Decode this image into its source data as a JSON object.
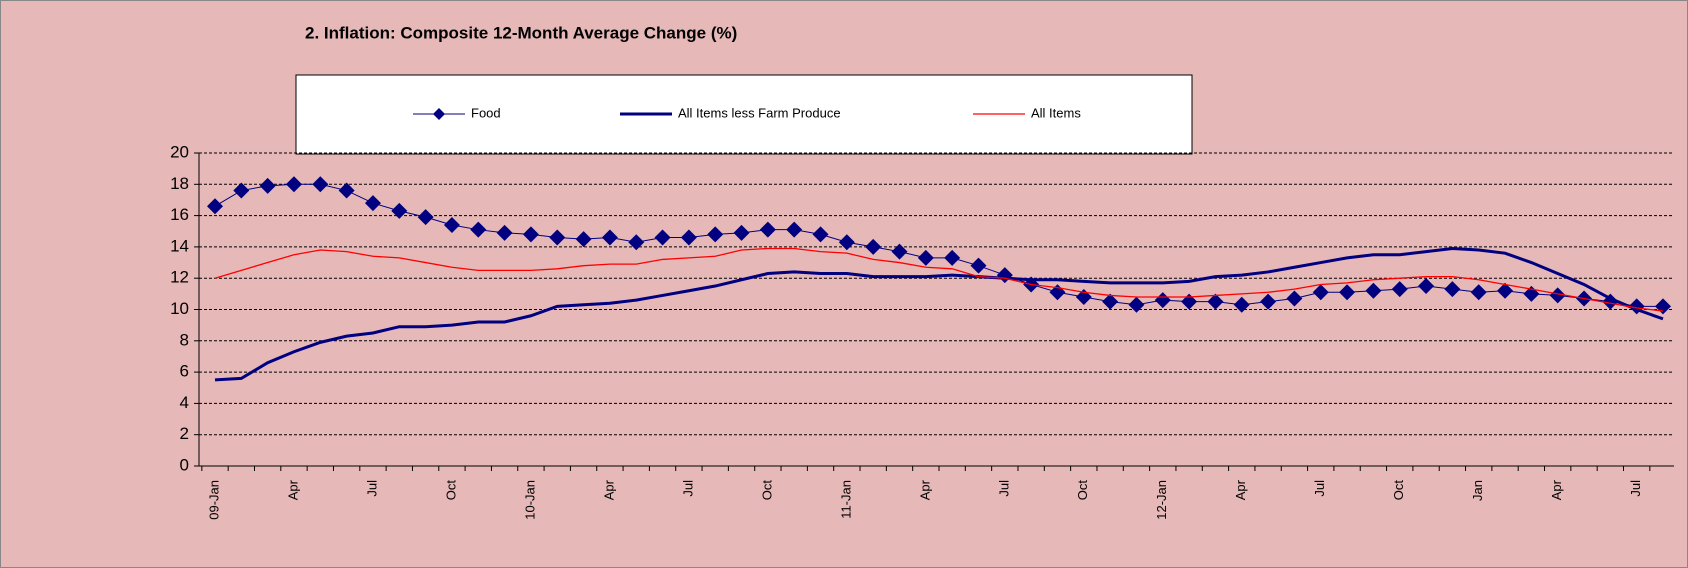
{
  "chart_data": {
    "type": "line",
    "title": "2. Inflation: Composite 12-Month Average Change (%)",
    "categories": [
      "09-Jan",
      null,
      null,
      "Apr",
      null,
      null,
      "Jul",
      null,
      null,
      "Oct",
      null,
      null,
      "10-Jan",
      null,
      null,
      "Apr",
      null,
      null,
      "Jul",
      null,
      null,
      "Oct",
      null,
      null,
      "11-Jan",
      null,
      null,
      "Apr",
      null,
      null,
      "Jul",
      null,
      null,
      "Oct",
      null,
      null,
      "12-Jan",
      null,
      null,
      "Apr",
      null,
      null,
      "Jul",
      null,
      null,
      "Oct",
      null,
      null,
      "Jan",
      null,
      null,
      "Apr",
      null,
      null,
      "Jul",
      null
    ],
    "series": [
      {
        "name": "Food",
        "color": "#000080",
        "marker": "diamond",
        "values": [
          16.6,
          17.6,
          17.9,
          18.0,
          18.0,
          17.6,
          16.8,
          16.3,
          15.9,
          15.4,
          15.1,
          14.9,
          14.8,
          14.6,
          14.5,
          14.6,
          14.3,
          14.6,
          14.6,
          14.8,
          14.9,
          15.1,
          15.1,
          14.8,
          14.3,
          14.0,
          13.7,
          13.3,
          13.3,
          12.8,
          12.2,
          11.6,
          11.1,
          10.8,
          10.5,
          10.3,
          10.6,
          10.5,
          10.5,
          10.3,
          10.5,
          10.7,
          11.1,
          11.1,
          11.2,
          11.3,
          11.5,
          11.3,
          11.1,
          11.2,
          11.0,
          10.9,
          10.7,
          10.5,
          10.2,
          10.2
        ]
      },
      {
        "name": "All Items less Farm Produce",
        "color": "#000080",
        "width": 3,
        "values": [
          5.5,
          5.6,
          6.6,
          7.3,
          7.9,
          8.3,
          8.5,
          8.9,
          8.9,
          9.0,
          9.2,
          9.2,
          9.6,
          10.2,
          10.3,
          10.4,
          10.6,
          10.9,
          11.2,
          11.5,
          11.9,
          12.3,
          12.4,
          12.3,
          12.3,
          12.1,
          12.1,
          12.1,
          12.2,
          12.1,
          12.0,
          11.9,
          11.9,
          11.8,
          11.7,
          11.7,
          11.7,
          11.8,
          12.1,
          12.2,
          12.4,
          12.7,
          13.0,
          13.3,
          13.5,
          13.5,
          13.7,
          13.9,
          13.8,
          13.6,
          13.0,
          12.3,
          11.6,
          10.7,
          10.0,
          9.4
        ]
      },
      {
        "name": "All Items",
        "color": "#ff0000",
        "width": 1.3,
        "values": [
          12.0,
          12.5,
          13.0,
          13.5,
          13.8,
          13.7,
          13.4,
          13.3,
          13.0,
          12.7,
          12.5,
          12.5,
          12.5,
          12.6,
          12.8,
          12.9,
          12.9,
          13.2,
          13.3,
          13.4,
          13.8,
          13.9,
          13.9,
          13.7,
          13.6,
          13.2,
          13.0,
          12.7,
          12.6,
          12.1,
          12.0,
          11.6,
          11.4,
          11.1,
          10.9,
          10.8,
          10.8,
          10.8,
          10.9,
          11.0,
          11.1,
          11.3,
          11.6,
          11.7,
          11.9,
          12.0,
          12.1,
          12.1,
          11.9,
          11.6,
          11.3,
          11.0,
          10.7,
          10.4,
          10.1,
          9.9
        ]
      }
    ],
    "ylim": [
      0,
      20
    ],
    "yticks": [
      0,
      2,
      4,
      6,
      8,
      10,
      12,
      14,
      16,
      18,
      20
    ],
    "grid": true,
    "legend": "top"
  }
}
